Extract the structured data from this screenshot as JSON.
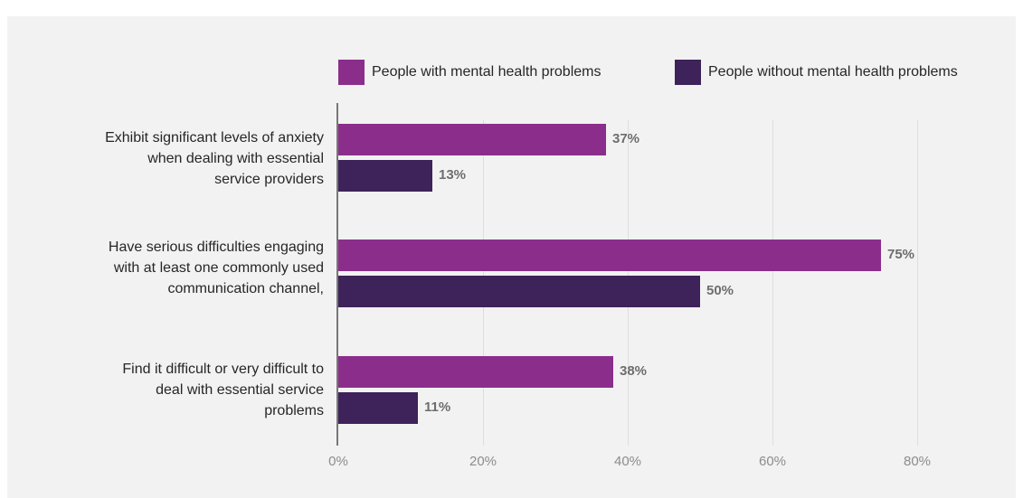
{
  "chart_data": {
    "type": "bar",
    "orientation": "horizontal",
    "categories": [
      "Exhibit significant levels of anxiety when dealing with essential service providers",
      "Have serious difficulties engaging with at least one commonly used communication channel,",
      "Find it difficult or very difficult to deal with essential service problems"
    ],
    "category_lines": [
      [
        "Exhibit significant levels of anxiety",
        "when dealing with essential",
        "service providers"
      ],
      [
        "Have serious difficulties engaging",
        "with at least one commonly used",
        "communication channel,"
      ],
      [
        "Find it difficult or very difficult to",
        "deal with essential service",
        "problems"
      ]
    ],
    "series": [
      {
        "name": "People with mental health problems",
        "color": "#8b2e8b",
        "values": [
          37,
          75,
          38
        ],
        "labels": [
          "37%",
          "75%",
          "38%"
        ]
      },
      {
        "name": "People without mental health problems",
        "color": "#3d2359",
        "values": [
          13,
          50,
          11
        ],
        "labels": [
          "13%",
          "50%",
          "11%"
        ]
      }
    ],
    "xlim": [
      0,
      80
    ],
    "xticks": [
      0,
      20,
      40,
      60,
      80
    ],
    "xtick_labels": [
      "0%",
      "20%",
      "40%",
      "60%",
      "80%"
    ],
    "grid": true,
    "legend_position": "top-right"
  }
}
